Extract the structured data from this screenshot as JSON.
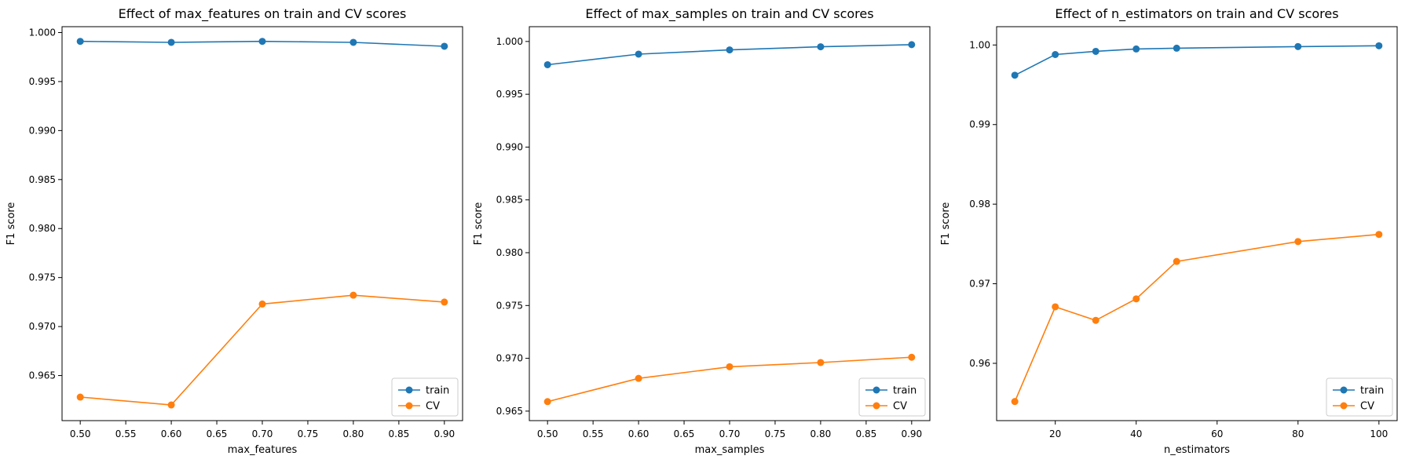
{
  "colors": {
    "train": "#1f77b4",
    "cv": "#ff7f0e"
  },
  "chart_data": [
    {
      "type": "line",
      "title": "Effect of max_features on train and CV scores",
      "xlabel": "max_features",
      "ylabel": "F1 score",
      "x": [
        0.5,
        0.6,
        0.7,
        0.8,
        0.9
      ],
      "xlim": [
        0.48,
        0.92
      ],
      "ylim": [
        0.9604,
        1.0006
      ],
      "xticks": [
        0.5,
        0.55,
        0.6,
        0.65,
        0.7,
        0.75,
        0.8,
        0.85,
        0.9
      ],
      "xtick_labels": [
        "0.50",
        "0.55",
        "0.60",
        "0.65",
        "0.70",
        "0.75",
        "0.80",
        "0.85",
        "0.90"
      ],
      "yticks": [
        0.965,
        0.97,
        0.975,
        0.98,
        0.985,
        0.99,
        0.995,
        1.0
      ],
      "ytick_labels": [
        "0.965",
        "0.970",
        "0.975",
        "0.980",
        "0.985",
        "0.990",
        "0.995",
        "1.000"
      ],
      "legend": "lower right",
      "series": [
        {
          "name": "train",
          "values": [
            0.9991,
            0.999,
            0.9991,
            0.999,
            0.9986
          ]
        },
        {
          "name": "CV",
          "values": [
            0.9628,
            0.962,
            0.9723,
            0.9732,
            0.9725
          ]
        }
      ]
    },
    {
      "type": "line",
      "title": "Effect of max_samples on train and CV scores",
      "xlabel": "max_samples",
      "ylabel": "F1 score",
      "x": [
        0.5,
        0.6,
        0.7,
        0.8,
        0.9
      ],
      "xlim": [
        0.48,
        0.92
      ],
      "ylim": [
        0.9641,
        1.0014
      ],
      "xticks": [
        0.5,
        0.55,
        0.6,
        0.65,
        0.7,
        0.75,
        0.8,
        0.85,
        0.9
      ],
      "xtick_labels": [
        "0.50",
        "0.55",
        "0.60",
        "0.65",
        "0.70",
        "0.75",
        "0.80",
        "0.85",
        "0.90"
      ],
      "yticks": [
        0.965,
        0.97,
        0.975,
        0.98,
        0.985,
        0.99,
        0.995,
        1.0
      ],
      "ytick_labels": [
        "0.965",
        "0.970",
        "0.975",
        "0.980",
        "0.985",
        "0.990",
        "0.995",
        "1.000"
      ],
      "legend": "lower right",
      "series": [
        {
          "name": "train",
          "values": [
            0.9978,
            0.9988,
            0.9992,
            0.9995,
            0.9997
          ]
        },
        {
          "name": "CV",
          "values": [
            0.9659,
            0.9681,
            0.9692,
            0.9696,
            0.9701
          ]
        }
      ]
    },
    {
      "type": "line",
      "title": "Effect of n_estimators on train and CV scores",
      "xlabel": "n_estimators",
      "ylabel": "F1 score",
      "x": [
        10,
        20,
        30,
        40,
        50,
        80,
        100
      ],
      "xlim": [
        5.5,
        104.5
      ],
      "ylim": [
        0.9528,
        1.0023
      ],
      "xticks": [
        20,
        40,
        60,
        80,
        100
      ],
      "xtick_labels": [
        "20",
        "40",
        "60",
        "80",
        "100"
      ],
      "yticks": [
        0.96,
        0.97,
        0.98,
        0.99,
        1.0
      ],
      "ytick_labels": [
        "0.96",
        "0.97",
        "0.98",
        "0.99",
        "1.00"
      ],
      "legend": "lower right",
      "series": [
        {
          "name": "train",
          "values": [
            0.9962,
            0.9988,
            0.9992,
            0.9995,
            0.9996,
            0.9998,
            0.9999
          ]
        },
        {
          "name": "CV",
          "values": [
            0.9552,
            0.9671,
            0.9654,
            0.9681,
            0.9728,
            0.9753,
            0.9762
          ]
        }
      ]
    }
  ]
}
